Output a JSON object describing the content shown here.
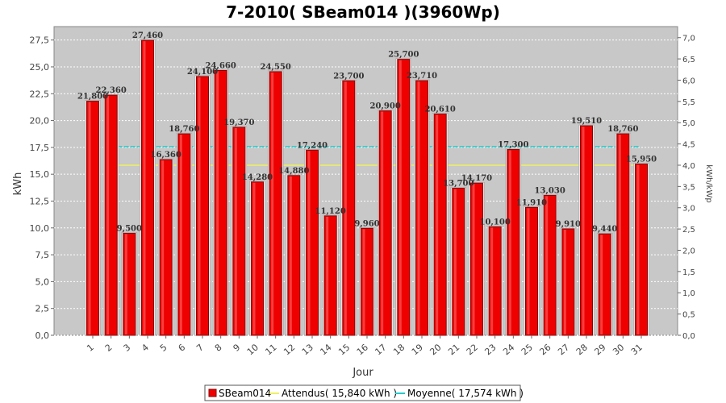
{
  "chart_data": {
    "type": "bar",
    "title": "7-2010( SBeam014 )(3960Wp)",
    "xlabel": "Jour",
    "ylabel": "kWh",
    "y2label": "kWh/kWp",
    "ylim": [
      0,
      28.75
    ],
    "y2lim": [
      0,
      7.26
    ],
    "yticks": [
      "0,0",
      "2,5",
      "5,0",
      "7,5",
      "10,0",
      "12,5",
      "15,0",
      "17,5",
      "20,0",
      "22,5",
      "25,0",
      "27,5"
    ],
    "y2ticks": [
      "0,0",
      "0,5",
      "1,0",
      "1,5",
      "2,0",
      "2,5",
      "3,0",
      "3,5",
      "4,0",
      "4,5",
      "5,0",
      "5,5",
      "6,0",
      "6,5",
      "7,0"
    ],
    "grid": true,
    "legend_position": "bottom",
    "categories": [
      "1",
      "2",
      "3",
      "4",
      "5",
      "6",
      "7",
      "8",
      "9",
      "10",
      "11",
      "12",
      "13",
      "14",
      "15",
      "16",
      "17",
      "18",
      "19",
      "20",
      "21",
      "22",
      "23",
      "24",
      "25",
      "26",
      "27",
      "28",
      "29",
      "30",
      "31"
    ],
    "series": [
      {
        "name": "SBeam014",
        "color": "#ee0000",
        "values": [
          21.8,
          22.36,
          9.5,
          27.46,
          16.36,
          18.76,
          24.1,
          24.66,
          19.37,
          14.28,
          24.55,
          14.88,
          17.24,
          11.12,
          23.7,
          9.96,
          20.9,
          25.7,
          23.71,
          20.61,
          13.7,
          14.17,
          10.1,
          17.3,
          11.91,
          13.03,
          9.91,
          19.51,
          9.44,
          18.76,
          15.95
        ],
        "labels": [
          "21,800",
          "22,360",
          "9,500",
          "27,460",
          "16,360",
          "18,760",
          "24,100",
          "24,660",
          "19,370",
          "14,280",
          "24,550",
          "14,880",
          "17,240",
          "11,120",
          "23,700",
          "9,960",
          "20,900",
          "25,700",
          "23,710",
          "20,610",
          "13,700",
          "14,170",
          "10,100",
          "17,300",
          "11,910",
          "13,030",
          "9,910",
          "19,510",
          "9,440",
          "18,760",
          "15,950"
        ]
      }
    ],
    "reference_lines": [
      {
        "name": "Attendus( 15,840 kWh )",
        "value": 15.84,
        "color": "#f0f060"
      },
      {
        "name": "Moyenne( 17,574 kWh )",
        "value": 17.574,
        "color": "#22cccc"
      }
    ]
  }
}
